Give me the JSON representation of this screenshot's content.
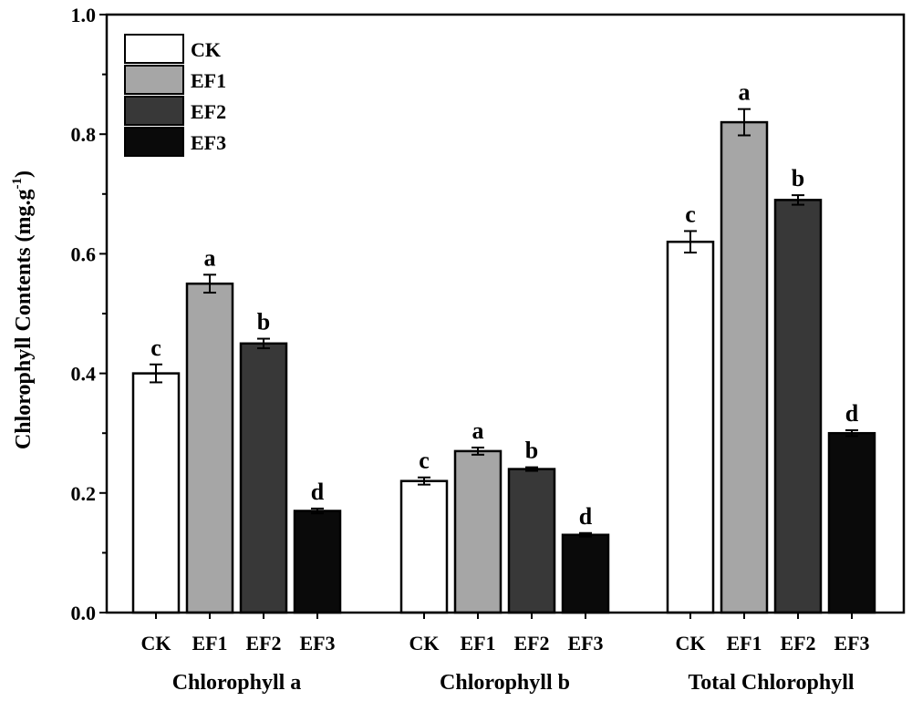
{
  "chart_data": {
    "type": "bar",
    "ylabel_main": "Chlorophyll Contents (mg.g",
    "ylabel_sup": "-1",
    "ylabel_close": ")",
    "ylim": [
      0.0,
      1.0
    ],
    "yticks": [
      "0.0",
      "0.2",
      "0.4",
      "0.6",
      "0.8",
      "1.0"
    ],
    "yticks_values": [
      0.0,
      0.2,
      0.4,
      0.6,
      0.8,
      1.0
    ],
    "legend_position": "top-left",
    "groups": [
      {
        "name": "Chlorophyll a",
        "categories": [
          "CK",
          "EF1",
          "EF2",
          "EF3"
        ],
        "values": [
          0.4,
          0.55,
          0.45,
          0.17
        ],
        "errors": [
          0.015,
          0.015,
          0.008,
          0.004
        ],
        "letters": [
          "c",
          "a",
          "b",
          "d"
        ]
      },
      {
        "name": "Chlorophyll b",
        "categories": [
          "CK",
          "EF1",
          "EF2",
          "EF3"
        ],
        "values": [
          0.22,
          0.27,
          0.24,
          0.13
        ],
        "errors": [
          0.006,
          0.006,
          0.003,
          0.003
        ],
        "letters": [
          "c",
          "a",
          "b",
          "d"
        ]
      },
      {
        "name": "Total Chlorophyll",
        "categories": [
          "CK",
          "EF1",
          "EF2",
          "EF3"
        ],
        "values": [
          0.62,
          0.82,
          0.69,
          0.3
        ],
        "errors": [
          0.018,
          0.022,
          0.008,
          0.005
        ],
        "letters": [
          "c",
          "a",
          "b",
          "d"
        ]
      }
    ],
    "series": [
      {
        "name": "CK",
        "color": "#ffffff"
      },
      {
        "name": "EF1",
        "color": "#a6a6a6"
      },
      {
        "name": "EF2",
        "color": "#383838"
      },
      {
        "name": "EF3",
        "color": "#0a0a0a"
      }
    ]
  }
}
